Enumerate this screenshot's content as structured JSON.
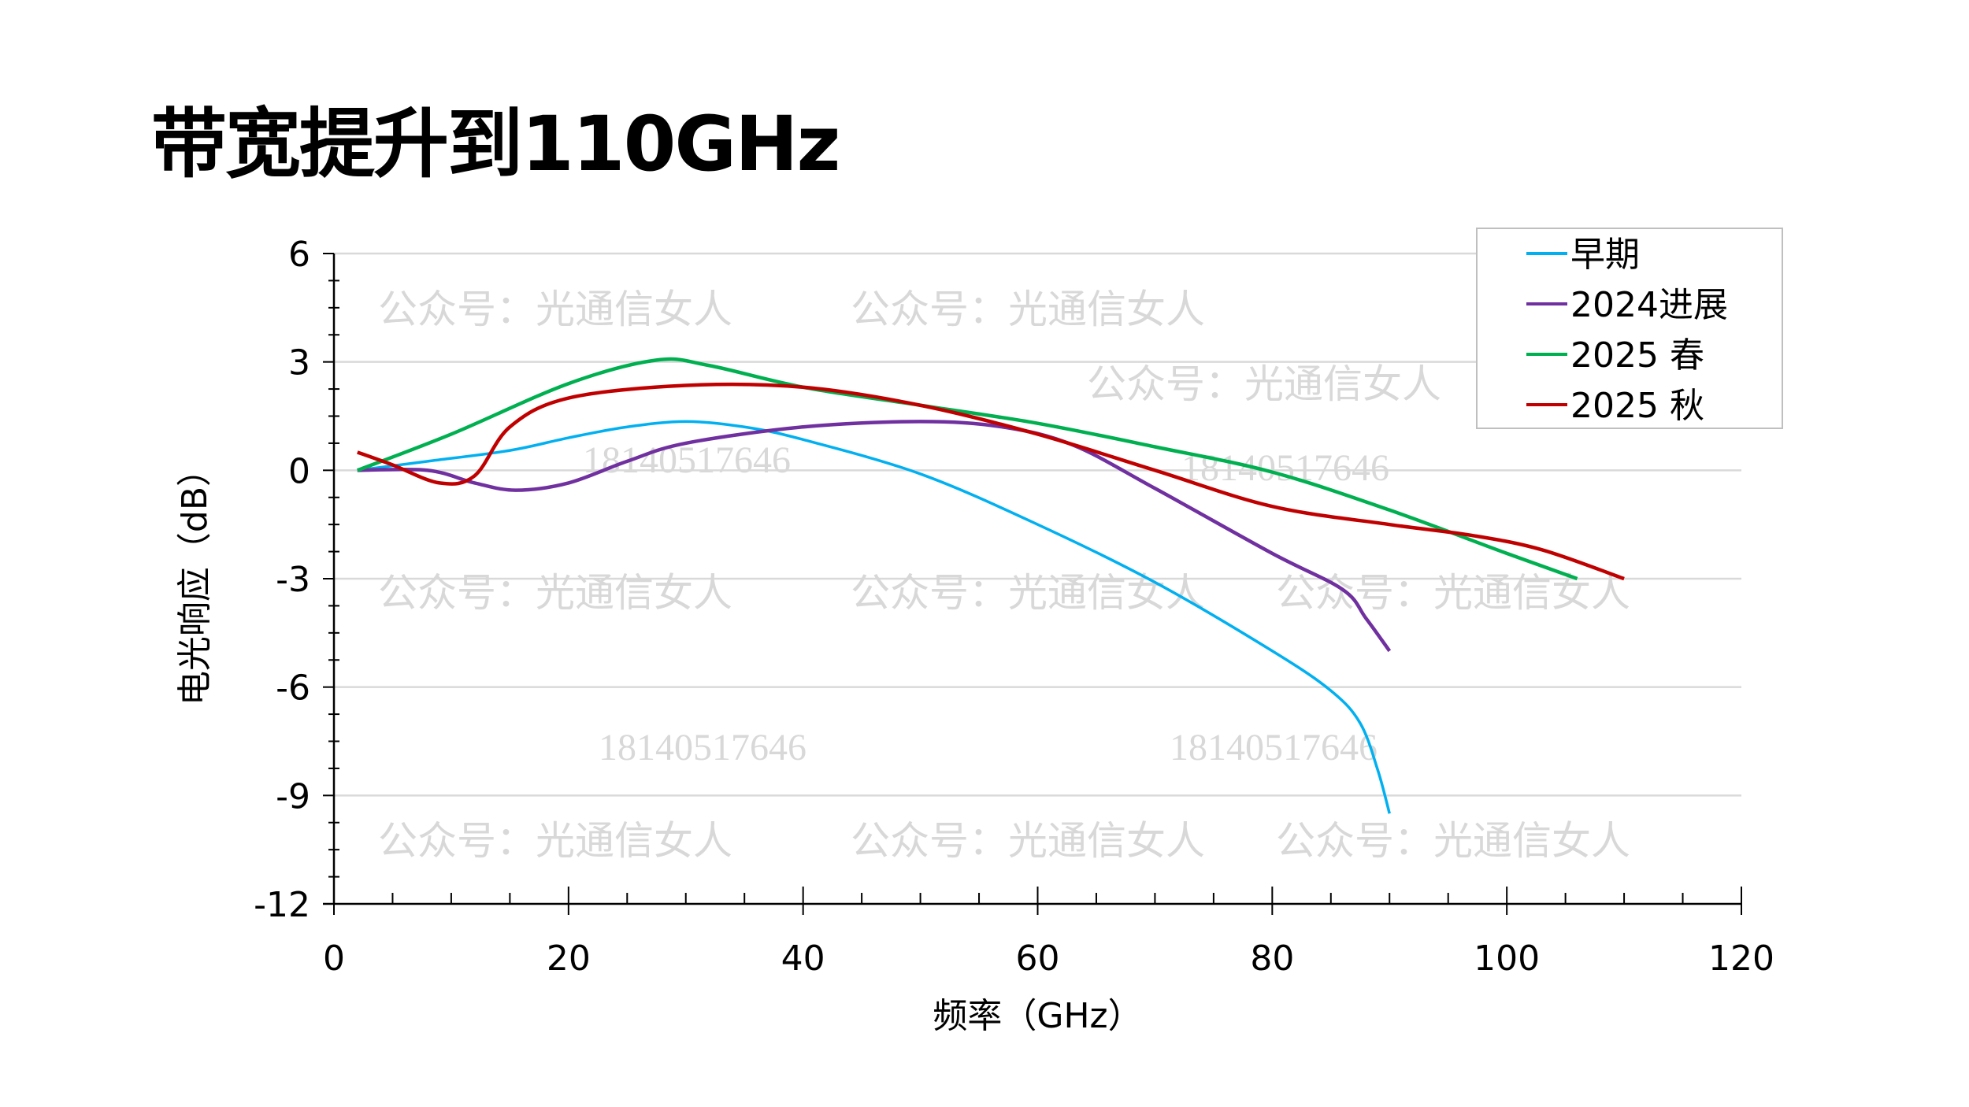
{
  "chart_data": {
    "type": "line",
    "title": "带宽提升到110GHz",
    "xlabel": "频率（GHz）",
    "ylabel": "电光响应（dB）",
    "xlim": [
      0,
      120
    ],
    "ylim": [
      -12,
      6
    ],
    "xticks": [
      0,
      20,
      40,
      60,
      80,
      100,
      120
    ],
    "yticks": [
      6,
      3,
      0,
      -3,
      -6,
      -9,
      -12
    ],
    "grid": true,
    "legend_position": "top-right",
    "series": [
      {
        "name": "早期",
        "color": "#00B0F0",
        "x": [
          2,
          8,
          15,
          20,
          25,
          30,
          35,
          40,
          50,
          60,
          70,
          80,
          85,
          87.5,
          89,
          90
        ],
        "y": [
          0,
          0.25,
          0.55,
          0.9,
          1.2,
          1.35,
          1.2,
          0.85,
          -0.1,
          -1.5,
          -3.1,
          -5.0,
          -6.1,
          -7.0,
          -8.3,
          -9.5
        ]
      },
      {
        "name": "2024进展",
        "color": "#7030A0",
        "x": [
          2,
          8,
          12,
          15.5,
          20,
          25,
          30,
          40,
          50,
          57,
          63,
          70,
          80,
          86,
          88,
          90
        ],
        "y": [
          0,
          0,
          -0.35,
          -0.55,
          -0.35,
          0.25,
          0.75,
          1.2,
          1.35,
          1.2,
          0.7,
          -0.5,
          -2.3,
          -3.3,
          -4.1,
          -5.0
        ]
      },
      {
        "name": "2025 春",
        "color": "#00B050",
        "x": [
          2,
          10,
          20,
          27.5,
          32,
          40,
          50,
          60,
          70,
          80,
          90,
          100,
          106
        ],
        "y": [
          0,
          1.0,
          2.4,
          3.05,
          2.9,
          2.3,
          1.8,
          1.3,
          0.65,
          -0.05,
          -1.1,
          -2.3,
          -3.0
        ]
      },
      {
        "name": "2025 秋",
        "color": "#C00000",
        "x": [
          2,
          5,
          9,
          12,
          15,
          20,
          30,
          40,
          50,
          60,
          70,
          80,
          90,
          97,
          103,
          110
        ],
        "y": [
          0.5,
          0.15,
          -0.35,
          -0.15,
          1.2,
          2.0,
          2.35,
          2.3,
          1.8,
          1.0,
          0.0,
          -1.0,
          -1.5,
          -1.8,
          -2.2,
          -3.0
        ]
      }
    ]
  },
  "watermarks": {
    "account": "公众号：光通信女人",
    "phone": "18140517646"
  }
}
